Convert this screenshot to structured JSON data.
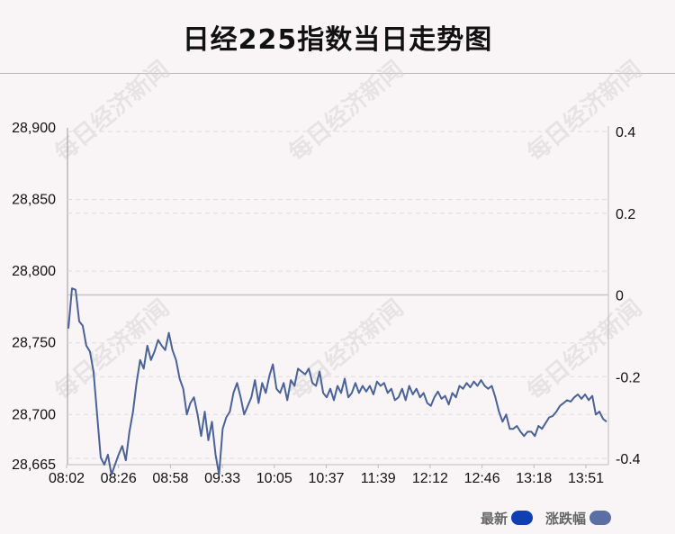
{
  "title": "日经225指数当日走势图",
  "watermark": "每日经济新闻",
  "legend": [
    {
      "label": "最新",
      "color": "#0f3fb2"
    },
    {
      "label": "涨跌幅",
      "color": "#5a6fa3"
    }
  ],
  "colors": {
    "line": "#4a6296",
    "grid": "#dedbdd",
    "baseline": "#c8c5c7"
  },
  "chart_data": {
    "type": "line",
    "x_ticks": [
      "08:02",
      "08:26",
      "08:58",
      "09:33",
      "10:05",
      "10:37",
      "11:39",
      "12:12",
      "12:46",
      "13:18",
      "13:51"
    ],
    "y_left_ticks": [
      "28,900",
      "28,850",
      "28,800",
      "28,750",
      "28,700",
      "28,665"
    ],
    "y_left_tick_values": [
      28900,
      28850,
      28800,
      28750,
      28700,
      28665
    ],
    "y_right_ticks": [
      "0.4",
      "0.2",
      "0",
      "-0.2",
      "-0.4"
    ],
    "y_right_tick_values": [
      0.4,
      0.2,
      0,
      -0.2,
      -0.4
    ],
    "ylim_left": [
      28665,
      28900
    ],
    "ylim_right": [
      -0.4,
      0.4
    ],
    "grid": true,
    "series": [
      {
        "values": [
          28760,
          28788,
          28787,
          28765,
          28762,
          28748,
          28744,
          28730,
          28700,
          28670,
          28665,
          28672,
          28658,
          28665,
          28672,
          28678,
          28668,
          28688,
          28702,
          28722,
          28738,
          28732,
          28748,
          28738,
          28744,
          28752,
          28748,
          28745,
          28757,
          28745,
          28738,
          28725,
          28718,
          28700,
          28708,
          28712,
          28700,
          28685,
          28702,
          28682,
          28695,
          28672,
          28658,
          28690,
          28698,
          28702,
          28715,
          28722,
          28712,
          28700,
          28706,
          28712,
          28724,
          28708,
          28722,
          28715,
          28727,
          28735,
          28718,
          28715,
          28722,
          28710,
          28724,
          28720,
          28732,
          28730,
          28728,
          28732,
          28722,
          28720,
          28730,
          28715,
          28712,
          28718,
          28710,
          28720,
          28715,
          28725,
          28712,
          28715,
          28722,
          28715,
          28720,
          28716,
          28720,
          28714,
          28723,
          28720,
          28722,
          28715,
          28718,
          28710,
          28712,
          28718,
          28710,
          28720,
          28714,
          28718,
          28712,
          28715,
          28708,
          28706,
          28712,
          28716,
          28711,
          28713,
          28707,
          28715,
          28712,
          28720,
          28718,
          28722,
          28719,
          28723,
          28720,
          28724,
          28720,
          28718,
          28720,
          28712,
          28702,
          28695,
          28700,
          28690,
          28690,
          28692,
          28688,
          28685,
          28688,
          28688,
          28685,
          28692,
          28690,
          28694,
          28698,
          28699,
          28702,
          28706,
          28708,
          28710,
          28709,
          28712,
          28714,
          28711,
          28714,
          28710,
          28713,
          28700,
          28702,
          28697,
          28695
        ]
      }
    ]
  }
}
